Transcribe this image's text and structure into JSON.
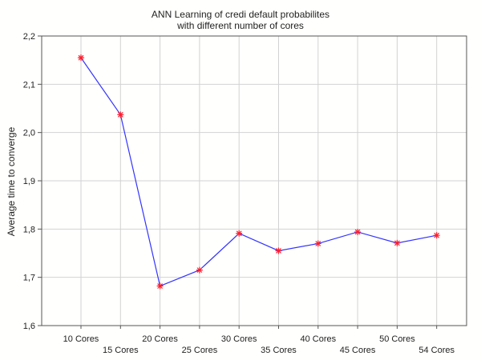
{
  "chart_data": {
    "type": "line",
    "title_line1": "ANN Learning of credi default probabilites",
    "title_line2": "with different number of cores",
    "ylabel": "Average time to converge",
    "xlabel": "",
    "categories": [
      "10 Cores",
      "15 Cores",
      "20 Cores",
      "25 Cores",
      "30 Cores",
      "35 Cores",
      "40 Cores",
      "45 Cores",
      "50 Cores",
      "54 Cores"
    ],
    "series": [
      {
        "values": [
          2.155,
          2.037,
          1.682,
          1.715,
          1.791,
          1.755,
          1.77,
          1.794,
          1.771,
          1.787
        ]
      }
    ],
    "ylim": [
      1.6,
      2.2
    ],
    "yticks": [
      "1,6",
      "1,7",
      "1,8",
      "1,9",
      "2,0",
      "2,1",
      "2,2"
    ],
    "grid": true,
    "legend": "none",
    "colors": {
      "line": "#3434ff",
      "marker": "#ff1e2d",
      "grid": "#d2d2d2",
      "frame": "#555555"
    }
  }
}
